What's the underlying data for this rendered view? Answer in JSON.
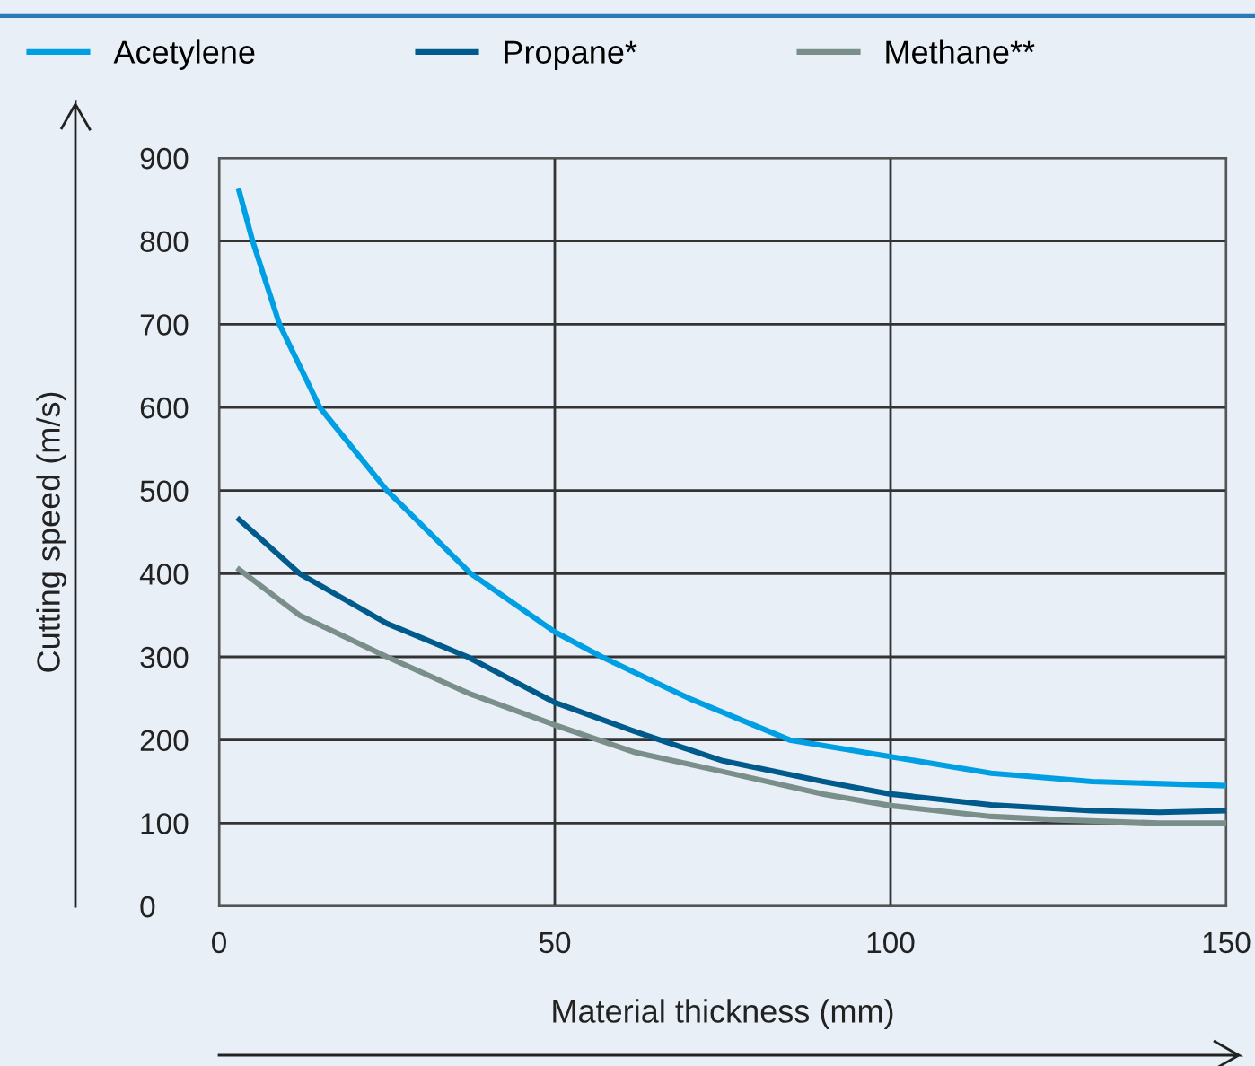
{
  "chart_data": {
    "type": "line",
    "xlabel": "Material thickness (mm)",
    "ylabel": "Cutting speed (m/s)",
    "xlim": [
      0,
      150
    ],
    "ylim": [
      0,
      900
    ],
    "xticks": [
      0,
      50,
      100,
      150
    ],
    "yticks": [
      0,
      100,
      200,
      300,
      400,
      500,
      600,
      700,
      800,
      900
    ],
    "grid": true,
    "legend": "top left",
    "marker": "none",
    "line_style": "solid",
    "series": [
      {
        "name": "Acetylene",
        "color": "#009fe3",
        "x": [
          3,
          5,
          9,
          15,
          25,
          37.5,
          50,
          57,
          70,
          85,
          100,
          115,
          130,
          150
        ],
        "values": [
          860,
          800,
          700,
          600,
          500,
          400,
          330,
          300,
          250,
          200,
          180,
          160,
          150,
          145
        ]
      },
      {
        "name": "Propane*",
        "color": "#005a8c",
        "x": [
          3,
          12,
          25,
          37,
          50,
          62,
          75,
          90,
          100,
          115,
          130,
          140,
          150
        ],
        "values": [
          465,
          400,
          340,
          300,
          245,
          210,
          175,
          150,
          135,
          122,
          115,
          113,
          115
        ]
      },
      {
        "name": "Methane**",
        "color": "#7a8f8a",
        "x": [
          3,
          12,
          25,
          37.5,
          50,
          62,
          75,
          90,
          100,
          115,
          125,
          140,
          150
        ],
        "values": [
          405,
          350,
          300,
          255,
          218,
          185,
          162,
          135,
          121,
          108,
          104,
          100,
          100
        ]
      }
    ]
  }
}
